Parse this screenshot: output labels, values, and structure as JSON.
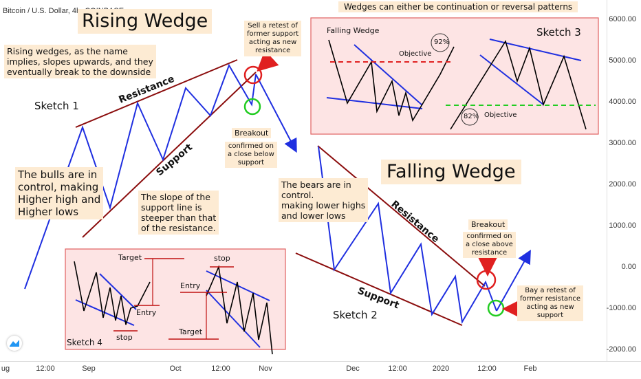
{
  "header": {
    "symbol": "Bitcoin / U.S. Dollar, 4h, COINBASE"
  },
  "title_rising": "Rising Wedge",
  "title_falling": "Falling Wedge",
  "top_note": "Wedges can either be continuation or reversal patterns",
  "notes": {
    "rising_desc": "Rising wedges, as the name\nimplies, slopes upwards, and they\neventually break to the downside",
    "bulls": "The bulls are in\ncontrol, making\nHigher high and\nHigher lows",
    "slope": "The slope of the\nsupport line is\nsteeper than that\nof the resistance.",
    "sell_retest": "Sell a retest of\nformer support\nacting as new\nresistance",
    "breakout_down_title": "Breakout",
    "breakout_down_text": "confirmed on\na close below\nsupport",
    "bears": "The bears are in\ncontrol.\nmaking lower highs\nand lower lows",
    "breakout_up_title": "Breakout",
    "breakout_up_text": "confirmed on\na close above\nresistance",
    "buy_retest": "Bay a retest of\nformer resistance\nacting as new\nsupport"
  },
  "line_labels": {
    "resistance": "Resistance",
    "support": "Support"
  },
  "sketches": {
    "s1": "Sketch 1",
    "s2": "Sketch 2",
    "s3": "Sketch 3",
    "s4": "Sketch 4"
  },
  "panel3": {
    "falling_wedge": "Falling Wedge",
    "objective": "Objective",
    "pct_top": "92%",
    "pct_bottom": "82%"
  },
  "panel4": {
    "target": "Target",
    "entry": "Entry",
    "stop": "stop"
  },
  "y_axis": [
    "6000.00",
    "5000.00",
    "4000.00",
    "3000.00",
    "2000.00",
    "1000.00",
    "0.00",
    "-1000.00",
    "-2000.00"
  ],
  "x_axis": [
    "ug",
    "12:00",
    "Sep",
    "Oct",
    "12:00",
    "Nov",
    "Dec",
    "12:00",
    "2020",
    "12:00",
    "Feb"
  ],
  "colors": {
    "blue": "#1f2fe0",
    "darkred": "#8b0d0d",
    "panel_fill": "#fde4e4",
    "panel_border": "#e06060",
    "red": "#e02020",
    "green": "#22cc22",
    "note_bg": "#fdebd3"
  },
  "chart_data": {
    "type": "line",
    "title": "",
    "y_range": [
      -2000,
      6000
    ],
    "y_ticks": [
      6000,
      5000,
      4000,
      3000,
      2000,
      1000,
      0,
      -1000,
      -2000
    ],
    "x_ticks": [
      "ug",
      "12:00",
      "Sep",
      "Oct",
      "12:00",
      "Nov",
      "Dec",
      "12:00",
      "2020",
      "12:00",
      "Feb"
    ]
  }
}
